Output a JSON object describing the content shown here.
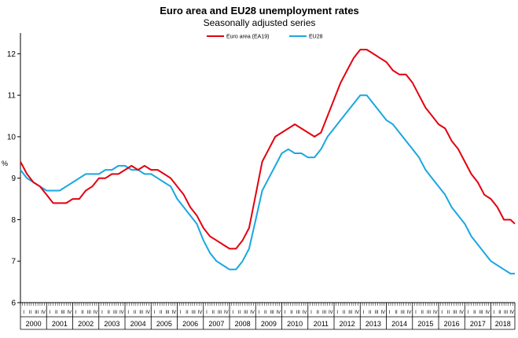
{
  "chart_data": {
    "type": "line",
    "title": "Euro area and EU28 unemployment rates",
    "subtitle": "Seasonally adjusted series",
    "ylabel": "%",
    "xlabel": "",
    "ylim": [
      6,
      12.5
    ],
    "yticks": [
      6,
      7,
      8,
      9,
      10,
      11,
      12
    ],
    "years": [
      "2000",
      "2001",
      "2002",
      "2003",
      "2004",
      "2005",
      "2006",
      "2007",
      "2008",
      "2009",
      "2010",
      "2011",
      "2012",
      "2013",
      "2014",
      "2015",
      "2016",
      "2017",
      "2018"
    ],
    "quarter_labels": [
      "I",
      "II",
      "III",
      "IV"
    ],
    "x_start": "2000-01",
    "x_end": "2018-12",
    "legend_position": "top-center",
    "grid": false,
    "series": [
      {
        "name": "Euro area (EA19)",
        "color": "#e3000f",
        "points": [
          [
            "2000-01",
            9.4
          ],
          [
            "2000-04",
            9.1
          ],
          [
            "2000-07",
            8.9
          ],
          [
            "2000-10",
            8.8
          ],
          [
            "2001-01",
            8.6
          ],
          [
            "2001-04",
            8.4
          ],
          [
            "2001-07",
            8.4
          ],
          [
            "2001-10",
            8.4
          ],
          [
            "2002-01",
            8.5
          ],
          [
            "2002-04",
            8.5
          ],
          [
            "2002-07",
            8.7
          ],
          [
            "2002-10",
            8.8
          ],
          [
            "2003-01",
            9.0
          ],
          [
            "2003-04",
            9.0
          ],
          [
            "2003-07",
            9.1
          ],
          [
            "2003-10",
            9.1
          ],
          [
            "2004-01",
            9.2
          ],
          [
            "2004-04",
            9.3
          ],
          [
            "2004-07",
            9.2
          ],
          [
            "2004-10",
            9.3
          ],
          [
            "2005-01",
            9.2
          ],
          [
            "2005-04",
            9.2
          ],
          [
            "2005-07",
            9.1
          ],
          [
            "2005-10",
            9.0
          ],
          [
            "2006-01",
            8.8
          ],
          [
            "2006-04",
            8.6
          ],
          [
            "2006-07",
            8.3
          ],
          [
            "2006-10",
            8.1
          ],
          [
            "2007-01",
            7.8
          ],
          [
            "2007-04",
            7.6
          ],
          [
            "2007-07",
            7.5
          ],
          [
            "2007-10",
            7.4
          ],
          [
            "2008-01",
            7.3
          ],
          [
            "2008-04",
            7.3
          ],
          [
            "2008-07",
            7.5
          ],
          [
            "2008-10",
            7.8
          ],
          [
            "2009-01",
            8.6
          ],
          [
            "2009-04",
            9.4
          ],
          [
            "2009-07",
            9.7
          ],
          [
            "2009-10",
            10.0
          ],
          [
            "2010-01",
            10.1
          ],
          [
            "2010-04",
            10.2
          ],
          [
            "2010-07",
            10.3
          ],
          [
            "2010-10",
            10.2
          ],
          [
            "2011-01",
            10.1
          ],
          [
            "2011-04",
            10.0
          ],
          [
            "2011-07",
            10.1
          ],
          [
            "2011-10",
            10.5
          ],
          [
            "2012-01",
            10.9
          ],
          [
            "2012-04",
            11.3
          ],
          [
            "2012-07",
            11.6
          ],
          [
            "2012-10",
            11.9
          ],
          [
            "2013-01",
            12.1
          ],
          [
            "2013-04",
            12.1
          ],
          [
            "2013-07",
            12.0
          ],
          [
            "2013-10",
            11.9
          ],
          [
            "2014-01",
            11.8
          ],
          [
            "2014-04",
            11.6
          ],
          [
            "2014-07",
            11.5
          ],
          [
            "2014-10",
            11.5
          ],
          [
            "2015-01",
            11.3
          ],
          [
            "2015-04",
            11.0
          ],
          [
            "2015-07",
            10.7
          ],
          [
            "2015-10",
            10.5
          ],
          [
            "2016-01",
            10.3
          ],
          [
            "2016-04",
            10.2
          ],
          [
            "2016-07",
            9.9
          ],
          [
            "2016-10",
            9.7
          ],
          [
            "2017-01",
            9.4
          ],
          [
            "2017-04",
            9.1
          ],
          [
            "2017-07",
            8.9
          ],
          [
            "2017-10",
            8.6
          ],
          [
            "2018-01",
            8.5
          ],
          [
            "2018-04",
            8.3
          ],
          [
            "2018-07",
            8.0
          ],
          [
            "2018-10",
            8.0
          ],
          [
            "2018-12",
            7.9
          ]
        ]
      },
      {
        "name": "EU28",
        "color": "#1aa7e0",
        "points": [
          [
            "2000-01",
            9.2
          ],
          [
            "2000-04",
            9.0
          ],
          [
            "2000-07",
            8.9
          ],
          [
            "2000-10",
            8.8
          ],
          [
            "2001-01",
            8.7
          ],
          [
            "2001-04",
            8.7
          ],
          [
            "2001-07",
            8.7
          ],
          [
            "2001-10",
            8.8
          ],
          [
            "2002-01",
            8.9
          ],
          [
            "2002-04",
            9.0
          ],
          [
            "2002-07",
            9.1
          ],
          [
            "2002-10",
            9.1
          ],
          [
            "2003-01",
            9.1
          ],
          [
            "2003-04",
            9.2
          ],
          [
            "2003-07",
            9.2
          ],
          [
            "2003-10",
            9.3
          ],
          [
            "2004-01",
            9.3
          ],
          [
            "2004-04",
            9.2
          ],
          [
            "2004-07",
            9.2
          ],
          [
            "2004-10",
            9.1
          ],
          [
            "2005-01",
            9.1
          ],
          [
            "2005-04",
            9.0
          ],
          [
            "2005-07",
            8.9
          ],
          [
            "2005-10",
            8.8
          ],
          [
            "2006-01",
            8.5
          ],
          [
            "2006-04",
            8.3
          ],
          [
            "2006-07",
            8.1
          ],
          [
            "2006-10",
            7.9
          ],
          [
            "2007-01",
            7.5
          ],
          [
            "2007-04",
            7.2
          ],
          [
            "2007-07",
            7.0
          ],
          [
            "2007-10",
            6.9
          ],
          [
            "2008-01",
            6.8
          ],
          [
            "2008-04",
            6.8
          ],
          [
            "2008-07",
            7.0
          ],
          [
            "2008-10",
            7.3
          ],
          [
            "2009-01",
            8.0
          ],
          [
            "2009-04",
            8.7
          ],
          [
            "2009-07",
            9.0
          ],
          [
            "2009-10",
            9.3
          ],
          [
            "2010-01",
            9.6
          ],
          [
            "2010-04",
            9.7
          ],
          [
            "2010-07",
            9.6
          ],
          [
            "2010-10",
            9.6
          ],
          [
            "2011-01",
            9.5
          ],
          [
            "2011-04",
            9.5
          ],
          [
            "2011-07",
            9.7
          ],
          [
            "2011-10",
            10.0
          ],
          [
            "2012-01",
            10.2
          ],
          [
            "2012-04",
            10.4
          ],
          [
            "2012-07",
            10.6
          ],
          [
            "2012-10",
            10.8
          ],
          [
            "2013-01",
            11.0
          ],
          [
            "2013-04",
            11.0
          ],
          [
            "2013-07",
            10.8
          ],
          [
            "2013-10",
            10.6
          ],
          [
            "2014-01",
            10.4
          ],
          [
            "2014-04",
            10.3
          ],
          [
            "2014-07",
            10.1
          ],
          [
            "2014-10",
            9.9
          ],
          [
            "2015-01",
            9.7
          ],
          [
            "2015-04",
            9.5
          ],
          [
            "2015-07",
            9.2
          ],
          [
            "2015-10",
            9.0
          ],
          [
            "2016-01",
            8.8
          ],
          [
            "2016-04",
            8.6
          ],
          [
            "2016-07",
            8.3
          ],
          [
            "2016-10",
            8.1
          ],
          [
            "2017-01",
            7.9
          ],
          [
            "2017-04",
            7.6
          ],
          [
            "2017-07",
            7.4
          ],
          [
            "2017-10",
            7.2
          ],
          [
            "2018-01",
            7.0
          ],
          [
            "2018-04",
            6.9
          ],
          [
            "2018-07",
            6.8
          ],
          [
            "2018-10",
            6.7
          ],
          [
            "2018-12",
            6.7
          ]
        ]
      }
    ]
  }
}
